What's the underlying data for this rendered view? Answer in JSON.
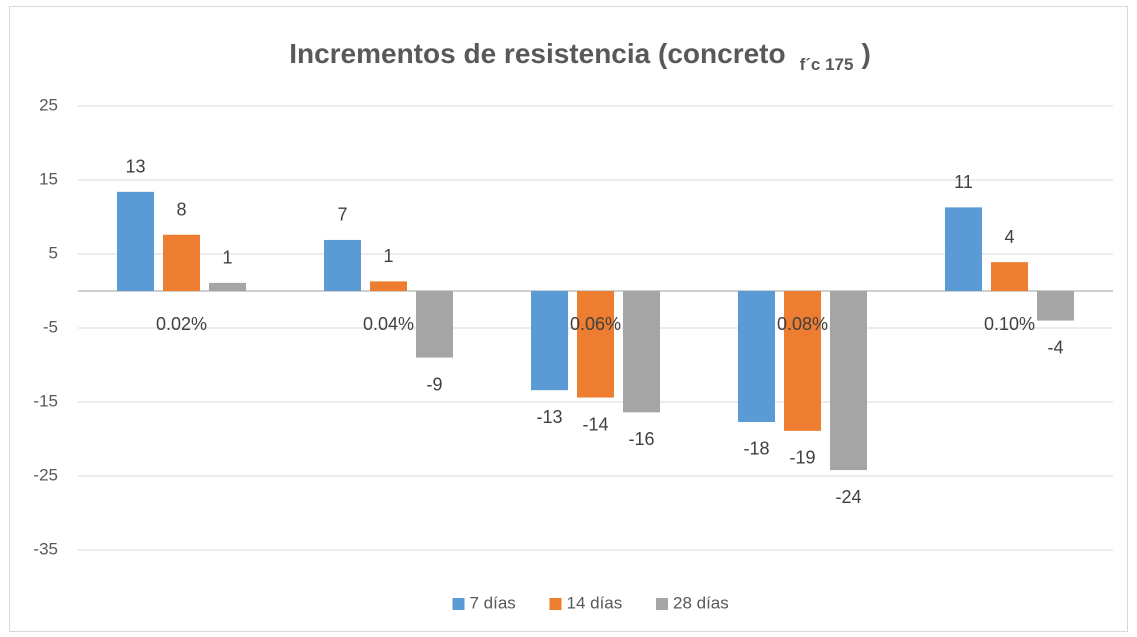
{
  "chart_data": {
    "type": "bar",
    "title": "Incrementos de resistencia (concreto",
    "title_subscript": "f´c 175",
    "title_end": ")",
    "categories": [
      "0.02%",
      "0.04%",
      "0.06%",
      "0.08%",
      "0.10%"
    ],
    "series": [
      {
        "name": "7 días",
        "color": "#5b9bd5",
        "values": [
          13.4,
          6.9,
          -13.4,
          -17.7,
          11.3
        ],
        "value_labels": [
          "13",
          "7",
          "-13",
          "-18",
          "11"
        ]
      },
      {
        "name": "14 días",
        "color": "#ed7d31",
        "values": [
          7.6,
          1.3,
          -14.4,
          -18.9,
          3.9
        ],
        "value_labels": [
          "8",
          "1",
          "-14",
          "-19",
          "4"
        ]
      },
      {
        "name": "28 días",
        "color": "#a5a5a5",
        "values": [
          1.1,
          -9.0,
          -16.4,
          -24.2,
          -4.0
        ],
        "value_labels": [
          "1",
          "-9",
          "-16",
          "-24",
          "-4"
        ]
      }
    ],
    "ylim": [
      -35,
      25
    ],
    "yticks": [
      25,
      15,
      5,
      -5,
      -15,
      -25,
      -35
    ],
    "grid": true,
    "legend": "bottom"
  }
}
